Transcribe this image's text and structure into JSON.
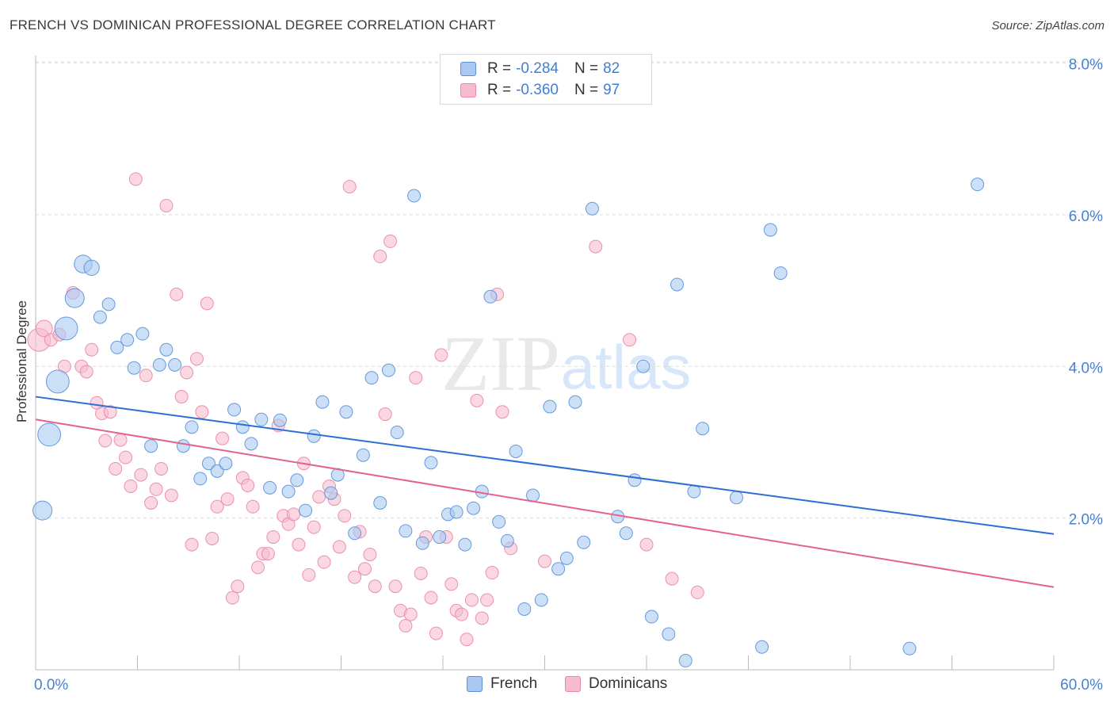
{
  "header": {
    "title": "FRENCH VS DOMINICAN PROFESSIONAL DEGREE CORRELATION CHART",
    "source": "Source: ZipAtlas.com"
  },
  "watermark": {
    "zip": "ZIP",
    "atlas": "atlas"
  },
  "legend": {
    "rows": [
      {
        "r_label": "R =",
        "r_value": "-0.284",
        "n_label": "N =",
        "n_value": "82"
      },
      {
        "r_label": "R =",
        "r_value": "-0.360",
        "n_label": "N =",
        "n_value": "97"
      }
    ],
    "series": [
      "French",
      "Dominicans"
    ]
  },
  "colors": {
    "french_fill": "#a9c9f2",
    "french_stroke": "#5a8fd8",
    "french_line": "#2b6fd4",
    "dominican_fill": "#f6bccd",
    "dominican_stroke": "#e887a8",
    "dominican_line": "#e4628e",
    "tick_text": "#4a7fcf",
    "grid": "#dddddd"
  },
  "chart_data": {
    "type": "scatter",
    "title": "FRENCH VS DOMINICAN PROFESSIONAL DEGREE CORRELATION CHART",
    "xlabel": "",
    "ylabel": "Professional Degree",
    "xlim": [
      0,
      60
    ],
    "ylim": [
      0,
      8.1
    ],
    "x_tick_labels": [
      "0.0%",
      "60.0%"
    ],
    "y_ticks": [
      2,
      4,
      6,
      8
    ],
    "y_tick_labels": [
      "2.0%",
      "4.0%",
      "6.0%",
      "8.0%"
    ],
    "grid": "horizontal dashed",
    "legend_position": "top-center",
    "series": [
      {
        "name": "French",
        "r": -0.284,
        "n": 82,
        "trend": {
          "x": [
            0,
            60
          ],
          "y": [
            3.6,
            1.79
          ]
        },
        "points": [
          [
            0.4,
            2.1,
            1.5
          ],
          [
            0.8,
            3.1,
            1.8
          ],
          [
            1.3,
            3.8,
            1.8
          ],
          [
            1.8,
            4.5,
            1.8
          ],
          [
            2.3,
            4.9,
            1.5
          ],
          [
            2.8,
            5.35,
            1.4
          ],
          [
            3.3,
            5.3,
            1.2
          ],
          [
            3.8,
            4.65,
            1
          ],
          [
            4.3,
            4.82,
            1
          ],
          [
            4.8,
            4.25,
            1
          ],
          [
            5.4,
            4.35,
            1
          ],
          [
            5.8,
            3.98,
            1
          ],
          [
            6.3,
            4.43,
            1
          ],
          [
            6.8,
            2.95,
            1
          ],
          [
            7.3,
            4.02,
            1
          ],
          [
            7.7,
            4.22,
            1
          ],
          [
            8.2,
            4.02,
            1
          ],
          [
            8.7,
            2.95,
            1
          ],
          [
            9.2,
            3.2,
            1
          ],
          [
            9.7,
            2.52,
            1
          ],
          [
            10.2,
            2.72,
            1
          ],
          [
            10.7,
            2.62,
            1
          ],
          [
            11.2,
            2.72,
            1
          ],
          [
            11.7,
            3.43,
            1
          ],
          [
            12.2,
            3.2,
            1
          ],
          [
            12.7,
            2.98,
            1
          ],
          [
            13.3,
            3.3,
            1
          ],
          [
            13.8,
            2.4,
            1
          ],
          [
            14.4,
            3.29,
            1
          ],
          [
            14.9,
            2.35,
            1
          ],
          [
            15.4,
            2.5,
            1
          ],
          [
            15.9,
            2.1,
            1
          ],
          [
            16.4,
            3.08,
            1
          ],
          [
            16.9,
            3.53,
            1
          ],
          [
            17.4,
            2.33,
            1
          ],
          [
            17.8,
            2.57,
            1
          ],
          [
            18.3,
            3.4,
            1
          ],
          [
            18.8,
            1.8,
            1
          ],
          [
            19.3,
            2.83,
            1
          ],
          [
            19.8,
            3.85,
            1
          ],
          [
            20.3,
            2.2,
            1
          ],
          [
            20.8,
            3.95,
            1
          ],
          [
            21.3,
            3.13,
            1
          ],
          [
            21.8,
            1.83,
            1
          ],
          [
            22.3,
            6.25,
            1
          ],
          [
            22.8,
            1.67,
            1
          ],
          [
            23.3,
            2.73,
            1
          ],
          [
            23.8,
            1.75,
            1
          ],
          [
            24.3,
            2.05,
            1
          ],
          [
            24.8,
            2.08,
            1
          ],
          [
            25.3,
            1.65,
            1
          ],
          [
            25.8,
            2.13,
            1
          ],
          [
            26.3,
            2.35,
            1
          ],
          [
            26.8,
            4.92,
            1
          ],
          [
            27.3,
            1.95,
            1
          ],
          [
            27.8,
            1.7,
            1
          ],
          [
            28.3,
            2.88,
            1
          ],
          [
            28.8,
            0.8,
            1
          ],
          [
            29.3,
            2.3,
            1
          ],
          [
            29.8,
            0.92,
            1
          ],
          [
            30.3,
            3.47,
            1
          ],
          [
            30.8,
            1.33,
            1
          ],
          [
            31.3,
            1.47,
            1
          ],
          [
            31.8,
            3.53,
            1
          ],
          [
            32.3,
            1.68,
            1
          ],
          [
            32.8,
            6.08,
            1
          ],
          [
            34.3,
            2.02,
            1
          ],
          [
            34.8,
            1.8,
            1
          ],
          [
            35.3,
            2.5,
            1
          ],
          [
            35.8,
            4.0,
            1
          ],
          [
            36.3,
            0.7,
            1
          ],
          [
            37.3,
            0.47,
            1
          ],
          [
            37.8,
            5.08,
            1
          ],
          [
            38.3,
            0.12,
            1
          ],
          [
            38.8,
            2.35,
            1
          ],
          [
            39.3,
            3.18,
            1
          ],
          [
            41.3,
            2.27,
            1
          ],
          [
            42.8,
            0.3,
            1
          ],
          [
            43.3,
            5.8,
            1
          ],
          [
            43.9,
            5.23,
            1
          ],
          [
            51.5,
            0.28,
            1
          ],
          [
            55.5,
            6.4,
            1
          ]
        ]
      },
      {
        "name": "Dominicans",
        "r": -0.36,
        "n": 97,
        "trend": {
          "x": [
            0,
            60
          ],
          "y": [
            3.3,
            1.09
          ]
        },
        "points": [
          [
            0.2,
            4.35,
            1.8
          ],
          [
            0.5,
            4.5,
            1.3
          ],
          [
            0.9,
            4.35,
            1
          ],
          [
            1.4,
            4.42,
            1
          ],
          [
            1.7,
            4.0,
            1
          ],
          [
            2.2,
            4.97,
            1
          ],
          [
            2.7,
            4.0,
            1
          ],
          [
            3.0,
            3.93,
            1
          ],
          [
            3.3,
            4.22,
            1
          ],
          [
            3.6,
            3.52,
            1
          ],
          [
            3.9,
            3.38,
            1
          ],
          [
            4.1,
            3.02,
            1
          ],
          [
            4.4,
            3.4,
            1
          ],
          [
            4.7,
            2.65,
            1
          ],
          [
            5.0,
            3.03,
            1
          ],
          [
            5.3,
            2.8,
            1
          ],
          [
            5.6,
            2.42,
            1
          ],
          [
            5.9,
            6.47,
            1
          ],
          [
            6.2,
            2.57,
            1
          ],
          [
            6.5,
            3.88,
            1
          ],
          [
            6.8,
            2.2,
            1
          ],
          [
            7.1,
            2.38,
            1
          ],
          [
            7.4,
            2.65,
            1
          ],
          [
            7.7,
            6.12,
            1
          ],
          [
            8.0,
            2.3,
            1
          ],
          [
            8.3,
            4.95,
            1
          ],
          [
            8.6,
            3.6,
            1
          ],
          [
            8.9,
            3.92,
            1
          ],
          [
            9.2,
            1.65,
            1
          ],
          [
            9.5,
            4.1,
            1
          ],
          [
            9.8,
            3.4,
            1
          ],
          [
            10.1,
            4.83,
            1
          ],
          [
            10.4,
            1.73,
            1
          ],
          [
            10.7,
            2.15,
            1
          ],
          [
            11.0,
            3.05,
            1
          ],
          [
            11.3,
            2.25,
            1
          ],
          [
            11.6,
            0.95,
            1
          ],
          [
            11.9,
            1.1,
            1
          ],
          [
            12.2,
            2.53,
            1
          ],
          [
            12.5,
            2.43,
            1
          ],
          [
            12.8,
            2.15,
            1
          ],
          [
            13.1,
            1.35,
            1
          ],
          [
            13.4,
            1.53,
            1
          ],
          [
            13.7,
            1.53,
            1
          ],
          [
            14.0,
            1.75,
            1
          ],
          [
            14.3,
            3.22,
            1
          ],
          [
            14.6,
            2.03,
            1
          ],
          [
            14.9,
            1.92,
            1
          ],
          [
            15.2,
            2.05,
            1
          ],
          [
            15.5,
            1.65,
            1
          ],
          [
            15.8,
            2.72,
            1
          ],
          [
            16.1,
            1.25,
            1
          ],
          [
            16.4,
            1.88,
            1
          ],
          [
            16.7,
            2.28,
            1
          ],
          [
            17.0,
            1.42,
            1
          ],
          [
            17.3,
            2.42,
            1
          ],
          [
            17.6,
            2.25,
            1
          ],
          [
            17.9,
            1.62,
            1
          ],
          [
            18.2,
            2.03,
            1
          ],
          [
            18.5,
            6.37,
            1
          ],
          [
            18.8,
            1.22,
            1
          ],
          [
            19.1,
            1.82,
            1
          ],
          [
            19.4,
            1.33,
            1
          ],
          [
            19.7,
            1.52,
            1
          ],
          [
            20.0,
            1.1,
            1
          ],
          [
            20.3,
            5.45,
            1
          ],
          [
            20.6,
            3.37,
            1
          ],
          [
            20.9,
            5.65,
            1
          ],
          [
            21.2,
            1.1,
            1
          ],
          [
            21.5,
            0.78,
            1
          ],
          [
            21.8,
            0.58,
            1
          ],
          [
            22.1,
            0.73,
            1
          ],
          [
            22.4,
            3.85,
            1
          ],
          [
            22.7,
            1.27,
            1
          ],
          [
            23.0,
            1.75,
            1
          ],
          [
            23.3,
            0.95,
            1
          ],
          [
            23.6,
            0.48,
            1
          ],
          [
            23.9,
            4.15,
            1
          ],
          [
            24.2,
            1.75,
            1
          ],
          [
            24.5,
            1.13,
            1
          ],
          [
            24.8,
            0.78,
            1
          ],
          [
            25.1,
            0.73,
            1
          ],
          [
            25.4,
            0.4,
            1
          ],
          [
            25.7,
            0.92,
            1
          ],
          [
            26.0,
            3.55,
            1
          ],
          [
            26.3,
            0.68,
            1
          ],
          [
            26.6,
            0.92,
            1
          ],
          [
            26.9,
            1.28,
            1
          ],
          [
            27.2,
            4.95,
            1
          ],
          [
            27.5,
            3.4,
            1
          ],
          [
            28.0,
            1.6,
            1
          ],
          [
            30.0,
            1.43,
            1
          ],
          [
            33.0,
            5.58,
            1
          ],
          [
            35.0,
            4.35,
            1
          ],
          [
            36.0,
            1.65,
            1
          ],
          [
            37.5,
            1.2,
            1
          ],
          [
            39.0,
            1.02,
            1
          ]
        ]
      }
    ]
  }
}
